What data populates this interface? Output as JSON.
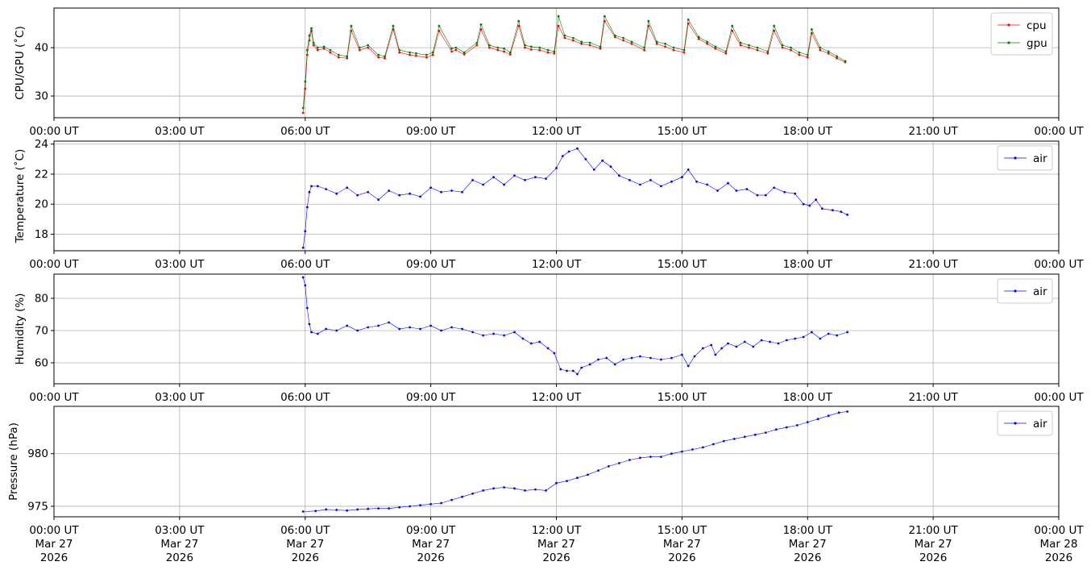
{
  "chart_data": [
    {
      "type": "scatter",
      "ylabel": "CPU/GPU (˚C)",
      "xlabel": "",
      "ylim": [
        25.5,
        48.2
      ],
      "yticks": [
        30,
        40
      ],
      "x_unit": "hours UT (Mar 27 2026)",
      "xlim": [
        0,
        24
      ],
      "grid": true,
      "legend_position": "top-right",
      "series": [
        {
          "name": "cpu",
          "color": "#ff0000",
          "x": [
            5.95,
            6.0,
            6.05,
            6.1,
            6.15,
            6.2,
            6.3,
            6.45,
            6.6,
            6.8,
            7.0,
            7.1,
            7.3,
            7.5,
            7.75,
            7.9,
            8.1,
            8.25,
            8.5,
            8.65,
            8.9,
            9.05,
            9.2,
            9.5,
            9.6,
            9.8,
            10.1,
            10.2,
            10.4,
            10.6,
            10.75,
            10.9,
            11.1,
            11.25,
            11.4,
            11.6,
            11.8,
            11.95,
            12.05,
            12.2,
            12.4,
            12.6,
            12.8,
            13.05,
            13.15,
            13.4,
            13.6,
            13.8,
            14.1,
            14.2,
            14.4,
            14.6,
            14.8,
            15.05,
            15.15,
            15.4,
            15.6,
            15.8,
            16.05,
            16.2,
            16.4,
            16.6,
            16.8,
            17.05,
            17.2,
            17.4,
            17.6,
            17.8,
            18.0,
            18.1,
            18.3,
            18.5,
            18.7,
            18.9
          ],
          "y": [
            26.5,
            31.5,
            38.5,
            41.5,
            43.5,
            40.5,
            39.5,
            39.8,
            39.0,
            38.0,
            37.8,
            43.5,
            39.5,
            40.0,
            38.0,
            37.8,
            43.8,
            39.0,
            38.5,
            38.3,
            38.0,
            38.5,
            43.5,
            39.2,
            39.5,
            38.6,
            40.5,
            43.8,
            40.0,
            39.5,
            39.2,
            38.6,
            44.5,
            40.0,
            39.6,
            39.5,
            39.0,
            38.8,
            44.5,
            42.0,
            41.5,
            40.8,
            40.5,
            39.8,
            45.5,
            42.2,
            41.5,
            40.8,
            39.5,
            44.5,
            40.8,
            40.2,
            39.5,
            39.0,
            45.0,
            41.8,
            40.8,
            39.8,
            38.8,
            43.5,
            40.5,
            40.0,
            39.5,
            38.8,
            43.5,
            40.0,
            39.5,
            38.5,
            38.0,
            43.0,
            39.5,
            38.8,
            37.8,
            37.0
          ]
        },
        {
          "name": "gpu",
          "color": "#008000",
          "x": [
            5.95,
            6.0,
            6.05,
            6.1,
            6.15,
            6.2,
            6.3,
            6.45,
            6.6,
            6.8,
            7.0,
            7.1,
            7.3,
            7.5,
            7.75,
            7.9,
            8.1,
            8.25,
            8.5,
            8.65,
            8.9,
            9.05,
            9.2,
            9.5,
            9.6,
            9.8,
            10.1,
            10.2,
            10.4,
            10.6,
            10.75,
            10.9,
            11.1,
            11.25,
            11.4,
            11.6,
            11.8,
            11.95,
            12.05,
            12.2,
            12.4,
            12.6,
            12.8,
            13.05,
            13.15,
            13.4,
            13.6,
            13.8,
            14.1,
            14.2,
            14.4,
            14.6,
            14.8,
            15.05,
            15.15,
            15.4,
            15.6,
            15.8,
            16.05,
            16.2,
            16.4,
            16.6,
            16.8,
            17.05,
            17.2,
            17.4,
            17.6,
            17.8,
            18.0,
            18.1,
            18.3,
            18.5,
            18.7,
            18.9
          ],
          "y": [
            27.5,
            33.0,
            39.5,
            42.5,
            44.0,
            41.0,
            40.0,
            40.2,
            39.5,
            38.5,
            38.2,
            44.5,
            40.0,
            40.5,
            38.5,
            38.2,
            44.5,
            39.5,
            39.0,
            38.8,
            38.5,
            39.0,
            44.5,
            39.8,
            40.0,
            39.0,
            41.0,
            44.8,
            40.5,
            40.0,
            39.8,
            39.0,
            45.5,
            40.5,
            40.2,
            40.0,
            39.5,
            39.2,
            46.5,
            42.5,
            42.0,
            41.2,
            41.0,
            40.2,
            46.5,
            42.5,
            42.0,
            41.2,
            40.0,
            45.5,
            41.2,
            40.8,
            40.0,
            39.5,
            45.8,
            42.2,
            41.2,
            40.2,
            39.2,
            44.5,
            41.0,
            40.5,
            40.0,
            39.2,
            44.5,
            40.5,
            40.0,
            39.0,
            38.5,
            43.8,
            40.0,
            39.2,
            38.2,
            37.2
          ]
        }
      ]
    },
    {
      "type": "scatter",
      "ylabel": "Temperature (˚C)",
      "xlabel": "",
      "ylim": [
        16.9,
        24.2
      ],
      "yticks": [
        18,
        20,
        22,
        24
      ],
      "x_unit": "hours UT (Mar 27 2026)",
      "xlim": [
        0,
        24
      ],
      "grid": true,
      "legend_position": "top-right",
      "series": [
        {
          "name": "air",
          "color": "#0000ff",
          "x": [
            5.95,
            6.0,
            6.05,
            6.1,
            6.15,
            6.3,
            6.5,
            6.75,
            7.0,
            7.25,
            7.5,
            7.75,
            8.0,
            8.25,
            8.5,
            8.75,
            9.0,
            9.25,
            9.5,
            9.75,
            10.0,
            10.25,
            10.5,
            10.75,
            11.0,
            11.25,
            11.5,
            11.75,
            12.0,
            12.15,
            12.3,
            12.5,
            12.7,
            12.9,
            13.1,
            13.3,
            13.5,
            13.75,
            14.0,
            14.25,
            14.5,
            14.75,
            15.0,
            15.15,
            15.35,
            15.6,
            15.85,
            16.1,
            16.3,
            16.55,
            16.8,
            17.0,
            17.2,
            17.45,
            17.7,
            17.9,
            18.05,
            18.2,
            18.35,
            18.6,
            18.8,
            18.95
          ],
          "y": [
            17.1,
            18.2,
            19.8,
            20.8,
            21.2,
            21.2,
            21.0,
            20.7,
            21.1,
            20.6,
            20.8,
            20.3,
            20.9,
            20.6,
            20.7,
            20.5,
            21.1,
            20.8,
            20.9,
            20.8,
            21.6,
            21.3,
            21.8,
            21.3,
            21.9,
            21.6,
            21.8,
            21.7,
            22.4,
            23.2,
            23.5,
            23.7,
            23.0,
            22.3,
            22.9,
            22.5,
            21.9,
            21.6,
            21.3,
            21.6,
            21.2,
            21.5,
            21.8,
            22.3,
            21.5,
            21.3,
            20.9,
            21.4,
            20.9,
            21.0,
            20.6,
            20.6,
            21.1,
            20.8,
            20.7,
            20.0,
            19.9,
            20.3,
            19.7,
            19.6,
            19.5,
            19.3
          ]
        }
      ]
    },
    {
      "type": "scatter",
      "ylabel": "Humidity (%)",
      "xlabel": "",
      "ylim": [
        53.5,
        87.5
      ],
      "yticks": [
        60,
        70,
        80
      ],
      "x_unit": "hours UT (Mar 27 2026)",
      "xlim": [
        0,
        24
      ],
      "grid": true,
      "legend_position": "top-right",
      "series": [
        {
          "name": "air",
          "color": "#0000ff",
          "x": [
            5.95,
            6.0,
            6.05,
            6.1,
            6.15,
            6.3,
            6.5,
            6.75,
            7.0,
            7.25,
            7.5,
            7.75,
            8.0,
            8.25,
            8.5,
            8.75,
            9.0,
            9.25,
            9.5,
            9.75,
            10.0,
            10.25,
            10.5,
            10.75,
            11.0,
            11.2,
            11.4,
            11.6,
            11.8,
            11.95,
            12.1,
            12.25,
            12.4,
            12.5,
            12.6,
            12.8,
            13.0,
            13.2,
            13.4,
            13.6,
            13.8,
            14.0,
            14.25,
            14.5,
            14.75,
            15.0,
            15.15,
            15.3,
            15.5,
            15.7,
            15.8,
            15.95,
            16.1,
            16.3,
            16.5,
            16.7,
            16.9,
            17.1,
            17.3,
            17.5,
            17.7,
            17.9,
            18.1,
            18.3,
            18.5,
            18.7,
            18.95
          ],
          "y": [
            86.5,
            84.0,
            77.0,
            72.0,
            69.5,
            69.0,
            70.5,
            70.0,
            71.5,
            70.0,
            71.0,
            71.5,
            72.5,
            70.5,
            71.0,
            70.5,
            71.5,
            70.0,
            71.0,
            70.5,
            69.5,
            68.5,
            69.0,
            68.5,
            69.5,
            67.5,
            66.0,
            66.5,
            64.5,
            63.0,
            58.0,
            57.5,
            57.5,
            56.5,
            58.5,
            59.5,
            61.0,
            61.5,
            59.5,
            61.0,
            61.5,
            62.0,
            61.5,
            61.0,
            61.5,
            62.5,
            59.0,
            62.0,
            64.5,
            65.5,
            62.5,
            64.5,
            66.0,
            65.0,
            66.5,
            65.0,
            67.0,
            66.5,
            66.0,
            67.0,
            67.5,
            68.0,
            69.5,
            67.5,
            69.0,
            68.5,
            69.5
          ]
        }
      ]
    },
    {
      "type": "scatter",
      "ylabel": "Pressure (hPa)",
      "xlabel": "",
      "ylim": [
        974.0,
        984.5
      ],
      "yticks": [
        975,
        980
      ],
      "x_unit": "hours UT (Mar 27 2026)",
      "xlim": [
        0,
        24
      ],
      "grid": true,
      "legend_position": "top-right",
      "series": [
        {
          "name": "air",
          "color": "#0000ff",
          "x": [
            5.95,
            6.25,
            6.5,
            6.75,
            7.0,
            7.25,
            7.5,
            7.75,
            8.0,
            8.25,
            8.5,
            8.75,
            9.0,
            9.25,
            9.5,
            9.75,
            10.0,
            10.25,
            10.5,
            10.75,
            11.0,
            11.25,
            11.5,
            11.75,
            12.0,
            12.25,
            12.5,
            12.75,
            13.0,
            13.25,
            13.5,
            13.75,
            14.0,
            14.25,
            14.5,
            14.75,
            15.0,
            15.25,
            15.5,
            15.75,
            16.0,
            16.25,
            16.5,
            16.75,
            17.0,
            17.25,
            17.5,
            17.75,
            18.0,
            18.25,
            18.5,
            18.75,
            18.95
          ],
          "y": [
            974.5,
            974.55,
            974.7,
            974.65,
            974.6,
            974.7,
            974.75,
            974.8,
            974.8,
            974.9,
            975.0,
            975.1,
            975.2,
            975.3,
            975.6,
            975.9,
            976.2,
            976.5,
            976.7,
            976.8,
            976.7,
            976.5,
            976.6,
            976.5,
            977.2,
            977.4,
            977.7,
            978.0,
            978.4,
            978.8,
            979.1,
            979.4,
            979.6,
            979.7,
            979.7,
            980.0,
            980.2,
            980.4,
            980.6,
            980.9,
            981.2,
            981.4,
            981.6,
            981.8,
            982.0,
            982.3,
            982.5,
            982.7,
            983.0,
            983.3,
            983.6,
            983.9,
            984.0
          ]
        }
      ]
    }
  ],
  "xaxis": {
    "ticks": [
      {
        "hour": 0,
        "time": "00:00 UT",
        "date": "Mar 27",
        "year": "2026"
      },
      {
        "hour": 3,
        "time": "03:00 UT",
        "date": "Mar 27",
        "year": "2026"
      },
      {
        "hour": 6,
        "time": "06:00 UT",
        "date": "Mar 27",
        "year": "2026"
      },
      {
        "hour": 9,
        "time": "09:00 UT",
        "date": "Mar 27",
        "year": "2026"
      },
      {
        "hour": 12,
        "time": "12:00 UT",
        "date": "Mar 27",
        "year": "2026"
      },
      {
        "hour": 15,
        "time": "15:00 UT",
        "date": "Mar 27",
        "year": "2026"
      },
      {
        "hour": 18,
        "time": "18:00 UT",
        "date": "Mar 27",
        "year": "2026"
      },
      {
        "hour": 21,
        "time": "21:00 UT",
        "date": "Mar 27",
        "year": "2026"
      },
      {
        "hour": 24,
        "time": "00:00 UT",
        "date": "Mar 28",
        "year": "2026"
      }
    ]
  },
  "colors": {
    "grid": "#b0b0b0",
    "axes": "#000000"
  }
}
